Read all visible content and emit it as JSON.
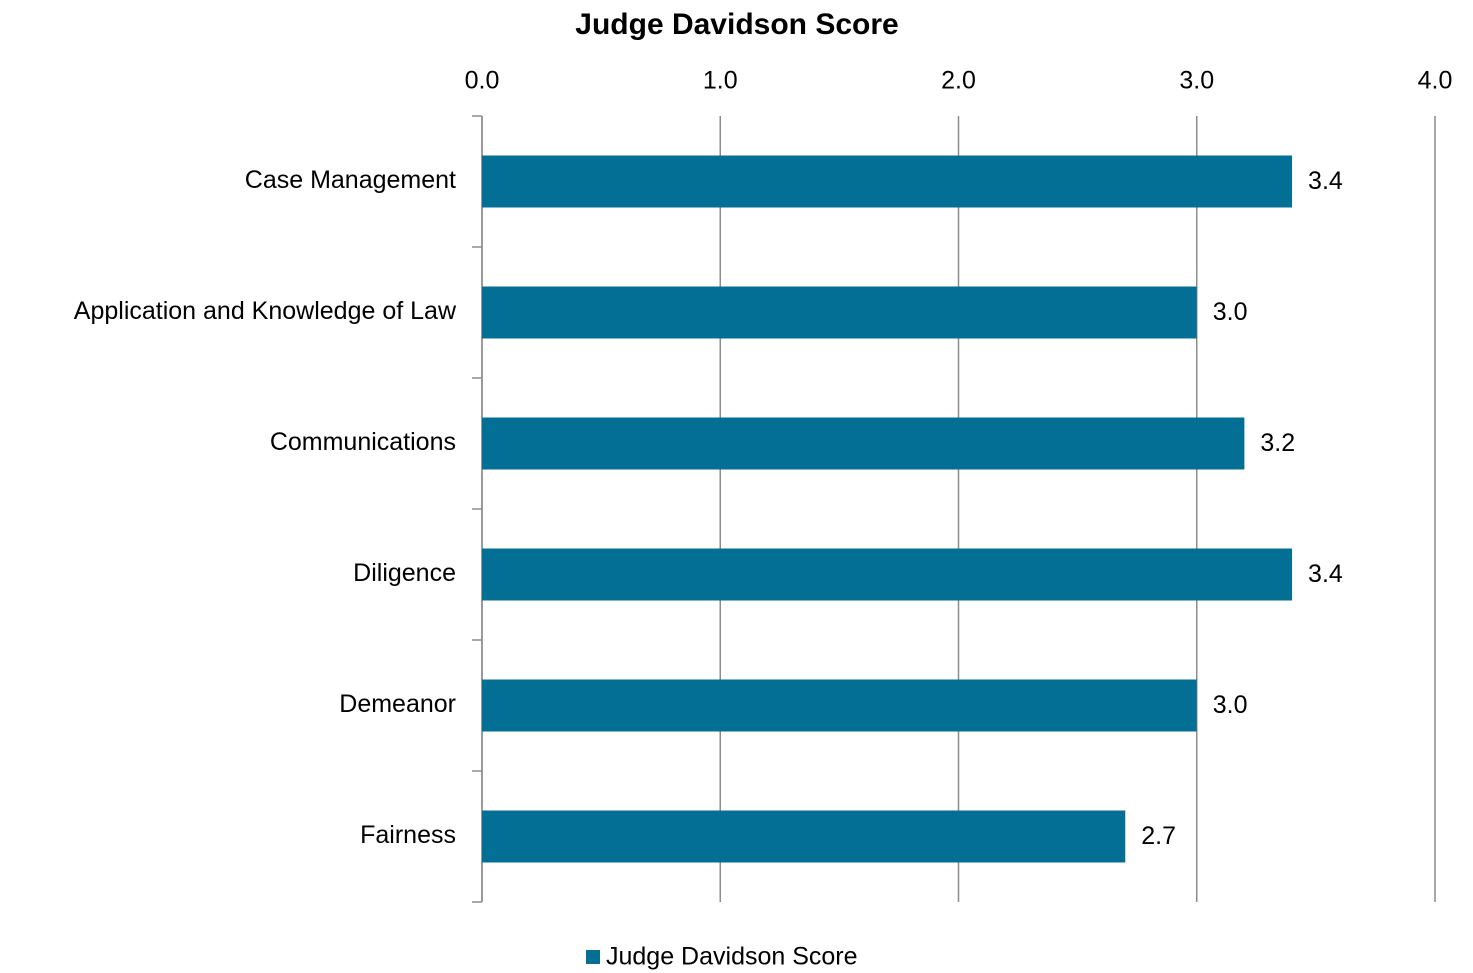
{
  "chart_data": {
    "type": "bar",
    "orientation": "horizontal",
    "title": "Judge Davidson Score",
    "categories": [
      "Case Management",
      "Application and Knowledge of Law",
      "Communications",
      "Diligence",
      "Demeanor",
      "Fairness"
    ],
    "series": [
      {
        "name": "Judge Davidson Score",
        "color": "#046f94",
        "values": [
          3.4,
          3.0,
          3.2,
          3.4,
          3.0,
          2.7
        ],
        "value_labels": [
          "3.4",
          "3.0",
          "3.2",
          "3.4",
          "3.0",
          "2.7"
        ]
      }
    ],
    "xlim": [
      0,
      4
    ],
    "xticks": [
      {
        "value": 0,
        "label": "0.0"
      },
      {
        "value": 1,
        "label": "1.0"
      },
      {
        "value": 2,
        "label": "2.0"
      },
      {
        "value": 3,
        "label": "3.0"
      },
      {
        "value": 4,
        "label": "4.0"
      }
    ],
    "grid": true,
    "legend": "bottom"
  }
}
